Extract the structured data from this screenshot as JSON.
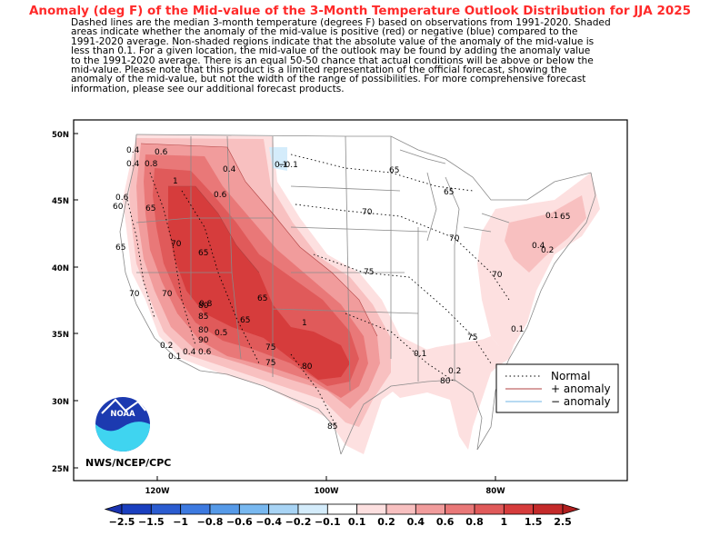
{
  "title": "Anomaly (deg F) of the Mid-value of the 3-Month Temperature Outlook Distribution for JJA 2025",
  "description_lines": [
    "Dashed lines are the median 3-month temperature (degrees F) based on observations from 1991-2020.  Shaded",
    "areas indicate whether the anomaly of the mid-value is positive (red) or negative (blue) compared to the",
    "1991-2020 average.   Non-shaded regions indicate that the absolute value of the anomaly of the mid-value is",
    "less than 0.1.   For a given location, the mid-value of the outlook may be found by adding the anomaly value",
    "to the 1991-2020 average. There is an equal 50-50 chance that actual conditions will be above or below the",
    "mid-value. Please note that this product is a limited representation of the official forecast, showing the",
    "anomaly of the mid-value, but not the width of the range of possibilities. For more comprehensive forecast",
    "information, please see our additional forecast products."
  ],
  "lat_labels": [
    "50N",
    "45N",
    "40N",
    "35N",
    "30N",
    "25N"
  ],
  "lon_labels": [
    "120W",
    "100W",
    "80W"
  ],
  "legend": {
    "normal": "Normal",
    "plus": "+ anomaly",
    "minus": "− anomaly"
  },
  "credit": "NWS/NCEP/CPC",
  "logo_text": "NOAA",
  "colorbar": {
    "labels": [
      "−2.5",
      "−1.5",
      "−1",
      "−0.8",
      "−0.6",
      "−0.4",
      "−0.2",
      "−0.1",
      "0.1",
      "0.2",
      "0.4",
      "0.6",
      "0.8",
      "1",
      "1.5",
      "2.5"
    ],
    "colors": [
      "#1a3fbf",
      "#2b5cd0",
      "#3d7ae0",
      "#569ae8",
      "#78b8f0",
      "#a8d4f5",
      "#d4ecfb",
      "#ffffff",
      "#fde0e0",
      "#f8c0c0",
      "#f19c9c",
      "#e97878",
      "#e05a5a",
      "#d63c3c",
      "#c42a2a"
    ],
    "left_color": "#1a33b0",
    "right_color": "#b01e1e"
  },
  "contour_labels": [
    "0.6",
    "0.8",
    "1",
    "0.4",
    "0.6",
    "0.4",
    "0.4",
    "0.6",
    "0.1",
    "0.1",
    "0.2",
    "0.4",
    "0.1",
    "0.2",
    "0.1",
    "0.2",
    "0.1",
    "0.4",
    "0.6",
    "0.5",
    "0.8",
    "1",
    "−0.1"
  ],
  "isotherm_labels": [
    "65",
    "65",
    "70",
    "70",
    "75",
    "70",
    "75",
    "80",
    "80",
    "85",
    "90",
    "75",
    "80",
    "85",
    "65",
    "70",
    "60",
    "65",
    "65",
    "70",
    "65",
    "65",
    "70",
    "75",
    "80",
    "65",
    "70"
  ]
}
